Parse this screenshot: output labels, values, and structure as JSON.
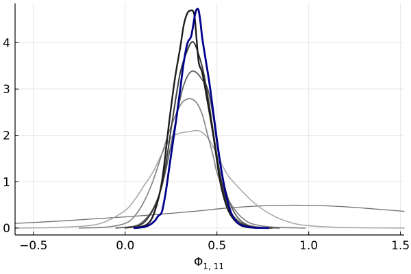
{
  "chart_data": {
    "type": "line",
    "title": "",
    "xlabel": "Φ",
    "xlabel_subscript": "1, 11",
    "ylabel": "",
    "xlim": [
      -0.6,
      1.52
    ],
    "ylim": [
      -0.15,
      4.85
    ],
    "xticks": [
      -0.5,
      0.0,
      0.5,
      1.0,
      1.5
    ],
    "xtick_labels": [
      "−0.5",
      "0.0",
      "0.5",
      "1.0",
      "1.5"
    ],
    "yticks": [
      0,
      1,
      2,
      3,
      4
    ],
    "ytick_labels": [
      "0",
      "1",
      "2",
      "3",
      "4"
    ],
    "grid": true,
    "legend": "none",
    "series": [
      {
        "color": "#6b6b6b",
        "width": 1.3,
        "x": [
          -0.6,
          -0.4,
          -0.2,
          0.0,
          0.2,
          0.4,
          0.55,
          0.7,
          0.85,
          1.0,
          1.15,
          1.3,
          1.52
        ],
        "y": [
          0.1,
          0.14,
          0.19,
          0.24,
          0.3,
          0.37,
          0.43,
          0.47,
          0.49,
          0.49,
          0.47,
          0.43,
          0.36
        ]
      },
      {
        "color": "#a8a8a8",
        "width": 1.6,
        "x": [
          -0.6,
          -0.4,
          -0.2,
          -0.1,
          0.0,
          0.05,
          0.1,
          0.15,
          0.2,
          0.25,
          0.3,
          0.35,
          0.4,
          0.45,
          0.5,
          0.55,
          0.6,
          0.7,
          0.8,
          0.9,
          1.0,
          1.2,
          1.52
        ],
        "y": [
          0.0,
          0.01,
          0.05,
          0.15,
          0.38,
          0.6,
          0.9,
          1.2,
          1.6,
          1.95,
          2.05,
          2.08,
          2.1,
          1.95,
          1.6,
          1.2,
          0.95,
          0.55,
          0.28,
          0.12,
          0.05,
          0.01,
          0.0
        ]
      },
      {
        "color": "#848484",
        "width": 1.7,
        "x": [
          -0.25,
          -0.1,
          0.0,
          0.05,
          0.1,
          0.15,
          0.2,
          0.25,
          0.3,
          0.33,
          0.36,
          0.39,
          0.42,
          0.45,
          0.48,
          0.5,
          0.55,
          0.6,
          0.65,
          0.7,
          0.8,
          0.98
        ],
        "y": [
          0.0,
          0.02,
          0.1,
          0.25,
          0.55,
          1.0,
          1.6,
          2.2,
          2.65,
          2.77,
          2.79,
          2.7,
          2.45,
          2.0,
          1.55,
          1.2,
          0.7,
          0.38,
          0.18,
          0.08,
          0.02,
          0.0
        ]
      },
      {
        "color": "#5d5d5d",
        "width": 1.8,
        "x": [
          -0.05,
          0.05,
          0.1,
          0.15,
          0.2,
          0.25,
          0.3,
          0.33,
          0.36,
          0.39,
          0.42,
          0.45,
          0.48,
          0.5,
          0.53,
          0.56,
          0.6,
          0.65,
          0.72,
          0.84
        ],
        "y": [
          0.0,
          0.04,
          0.15,
          0.4,
          0.9,
          1.8,
          2.8,
          3.2,
          3.38,
          3.35,
          3.2,
          3.0,
          2.4,
          1.8,
          1.1,
          0.65,
          0.3,
          0.1,
          0.02,
          0.0
        ]
      },
      {
        "color": "#3b3b3b",
        "width": 2.0,
        "x": [
          0.0,
          0.08,
          0.13,
          0.18,
          0.22,
          0.26,
          0.3,
          0.34,
          0.37,
          0.4,
          0.43,
          0.46,
          0.49,
          0.52,
          0.55,
          0.59,
          0.65,
          0.72,
          0.8
        ],
        "y": [
          0.0,
          0.06,
          0.25,
          0.65,
          1.35,
          2.4,
          3.35,
          3.85,
          4.02,
          3.75,
          3.3,
          2.6,
          1.8,
          1.1,
          0.6,
          0.25,
          0.07,
          0.01,
          0.0
        ]
      },
      {
        "color": "#1c1c1c",
        "width": 2.4,
        "x": [
          0.05,
          0.12,
          0.16,
          0.2,
          0.24,
          0.27,
          0.3,
          0.32,
          0.34,
          0.36,
          0.37,
          0.38,
          0.4,
          0.42,
          0.45,
          0.48,
          0.5,
          0.52,
          0.55,
          0.58,
          0.62,
          0.66,
          0.72
        ],
        "y": [
          0.0,
          0.08,
          0.35,
          1.0,
          2.3,
          3.2,
          3.9,
          4.4,
          4.65,
          4.7,
          4.68,
          4.5,
          3.6,
          3.35,
          2.7,
          2.0,
          1.45,
          0.95,
          0.5,
          0.25,
          0.08,
          0.02,
          0.0
        ]
      },
      {
        "color": "#00008b",
        "width": 2.8,
        "x": [
          0.05,
          0.1,
          0.13,
          0.16,
          0.18,
          0.2,
          0.22,
          0.24,
          0.26,
          0.28,
          0.3,
          0.32,
          0.34,
          0.36,
          0.38,
          0.39,
          0.4,
          0.41,
          0.42,
          0.44,
          0.46,
          0.48,
          0.5,
          0.52,
          0.54,
          0.56,
          0.58,
          0.61,
          0.65,
          0.7,
          0.78
        ],
        "y": [
          0.0,
          0.02,
          0.06,
          0.15,
          0.26,
          0.35,
          0.75,
          1.3,
          1.85,
          2.4,
          3.0,
          3.6,
          4.0,
          4.15,
          4.6,
          4.72,
          4.7,
          4.45,
          4.1,
          3.6,
          3.1,
          2.5,
          1.9,
          1.35,
          0.9,
          0.55,
          0.3,
          0.12,
          0.04,
          0.01,
          0.0
        ]
      }
    ]
  }
}
